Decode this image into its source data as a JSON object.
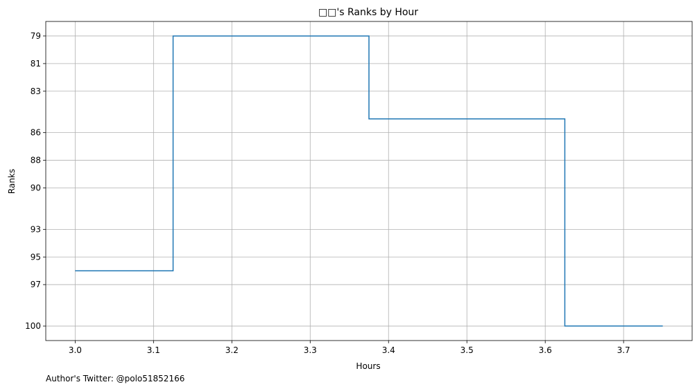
{
  "chart_data": {
    "type": "line",
    "drawstyle": "steps-post",
    "title": "□□'s Ranks by Hour",
    "xlabel": "Hours",
    "ylabel": "Ranks",
    "x": [
      3.0,
      3.125,
      3.375,
      3.625,
      3.75
    ],
    "y": [
      96,
      79,
      85,
      100,
      100
    ],
    "xlim": [
      2.9625,
      3.7875
    ],
    "ylim": [
      101.05,
      77.95
    ],
    "y_inverted": true,
    "xticks": [
      3.0,
      3.1,
      3.2,
      3.3,
      3.4,
      3.5,
      3.6,
      3.7
    ],
    "xtick_labels": [
      "3.0",
      "3.1",
      "3.2",
      "3.3",
      "3.4",
      "3.5",
      "3.6",
      "3.7"
    ],
    "yticks": [
      79,
      81,
      83,
      86,
      88,
      90,
      93,
      95,
      97,
      100
    ],
    "ytick_labels": [
      "79",
      "81",
      "83",
      "86",
      "88",
      "90",
      "93",
      "95",
      "97",
      "100"
    ],
    "grid": true,
    "line_color": "#1f77b4",
    "grid_color": "#b0b0b0"
  },
  "footnote": "Author's Twitter: @polo51852166"
}
